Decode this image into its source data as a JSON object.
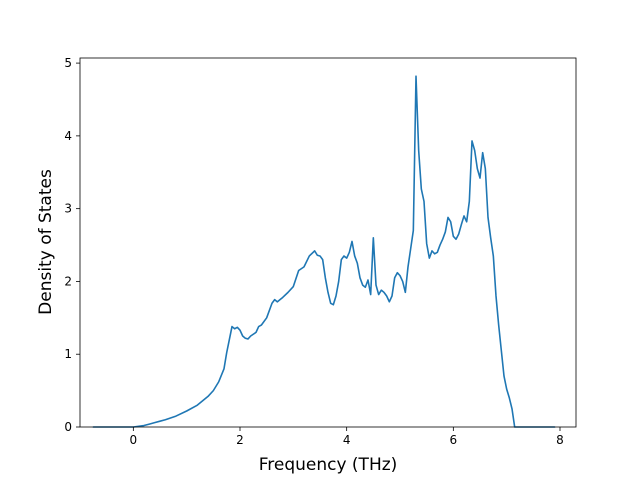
{
  "chart_data": {
    "type": "line",
    "title": "",
    "xlabel": "Frequency (THz)",
    "ylabel": "Density of States",
    "xlim": [
      -1.0,
      8.3
    ],
    "ylim": [
      0,
      5.07
    ],
    "xticks": [
      0,
      2,
      4,
      6,
      8
    ],
    "yticks": [
      0,
      1,
      2,
      3,
      4,
      5
    ],
    "grid": false,
    "line_color": "#1f77b4",
    "series": [
      {
        "name": "",
        "x": [
          -0.75,
          -0.4,
          0.0,
          0.1,
          0.2,
          0.3,
          0.4,
          0.5,
          0.6,
          0.8,
          1.0,
          1.2,
          1.4,
          1.5,
          1.6,
          1.7,
          1.75,
          1.8,
          1.85,
          1.9,
          1.95,
          2.0,
          2.05,
          2.1,
          2.15,
          2.2,
          2.3,
          2.35,
          2.4,
          2.5,
          2.6,
          2.65,
          2.7,
          2.75,
          2.8,
          2.9,
          3.0,
          3.1,
          3.2,
          3.3,
          3.4,
          3.45,
          3.5,
          3.55,
          3.6,
          3.65,
          3.7,
          3.75,
          3.8,
          3.85,
          3.9,
          3.95,
          4.0,
          4.05,
          4.1,
          4.15,
          4.2,
          4.25,
          4.3,
          4.35,
          4.4,
          4.45,
          4.5,
          4.55,
          4.6,
          4.65,
          4.7,
          4.75,
          4.8,
          4.85,
          4.9,
          4.95,
          5.0,
          5.05,
          5.1,
          5.15,
          5.2,
          5.25,
          5.3,
          5.35,
          5.4,
          5.45,
          5.5,
          5.55,
          5.6,
          5.65,
          5.7,
          5.75,
          5.8,
          5.85,
          5.9,
          5.95,
          6.0,
          6.05,
          6.1,
          6.15,
          6.2,
          6.25,
          6.3,
          6.35,
          6.4,
          6.45,
          6.5,
          6.55,
          6.6,
          6.65,
          6.7,
          6.75,
          6.8,
          6.85,
          6.9,
          6.95,
          7.0,
          7.05,
          7.1,
          7.15,
          7.3,
          7.6,
          7.9
        ],
        "values": [
          0.0,
          0.0,
          0.0,
          0.01,
          0.02,
          0.04,
          0.06,
          0.08,
          0.1,
          0.15,
          0.22,
          0.3,
          0.42,
          0.5,
          0.62,
          0.8,
          1.02,
          1.2,
          1.38,
          1.35,
          1.37,
          1.33,
          1.25,
          1.22,
          1.21,
          1.25,
          1.3,
          1.38,
          1.4,
          1.5,
          1.7,
          1.75,
          1.72,
          1.75,
          1.78,
          1.85,
          1.93,
          2.15,
          2.2,
          2.35,
          2.42,
          2.36,
          2.35,
          2.3,
          2.05,
          1.85,
          1.7,
          1.68,
          1.8,
          2.0,
          2.3,
          2.35,
          2.32,
          2.4,
          2.55,
          2.35,
          2.25,
          2.05,
          1.95,
          1.92,
          2.02,
          1.82,
          2.6,
          1.95,
          1.82,
          1.88,
          1.85,
          1.8,
          1.72,
          1.8,
          2.05,
          2.12,
          2.08,
          2.0,
          1.85,
          2.2,
          2.45,
          2.7,
          4.82,
          3.8,
          3.27,
          3.1,
          2.52,
          2.32,
          2.42,
          2.38,
          2.4,
          2.5,
          2.58,
          2.68,
          2.88,
          2.82,
          2.62,
          2.58,
          2.65,
          2.78,
          2.9,
          2.82,
          3.1,
          3.93,
          3.8,
          3.55,
          3.42,
          3.77,
          3.55,
          2.88,
          2.6,
          2.35,
          1.8,
          1.4,
          1.05,
          0.7,
          0.52,
          0.4,
          0.25,
          0.0,
          0.0,
          0.0,
          0.0
        ]
      }
    ]
  }
}
